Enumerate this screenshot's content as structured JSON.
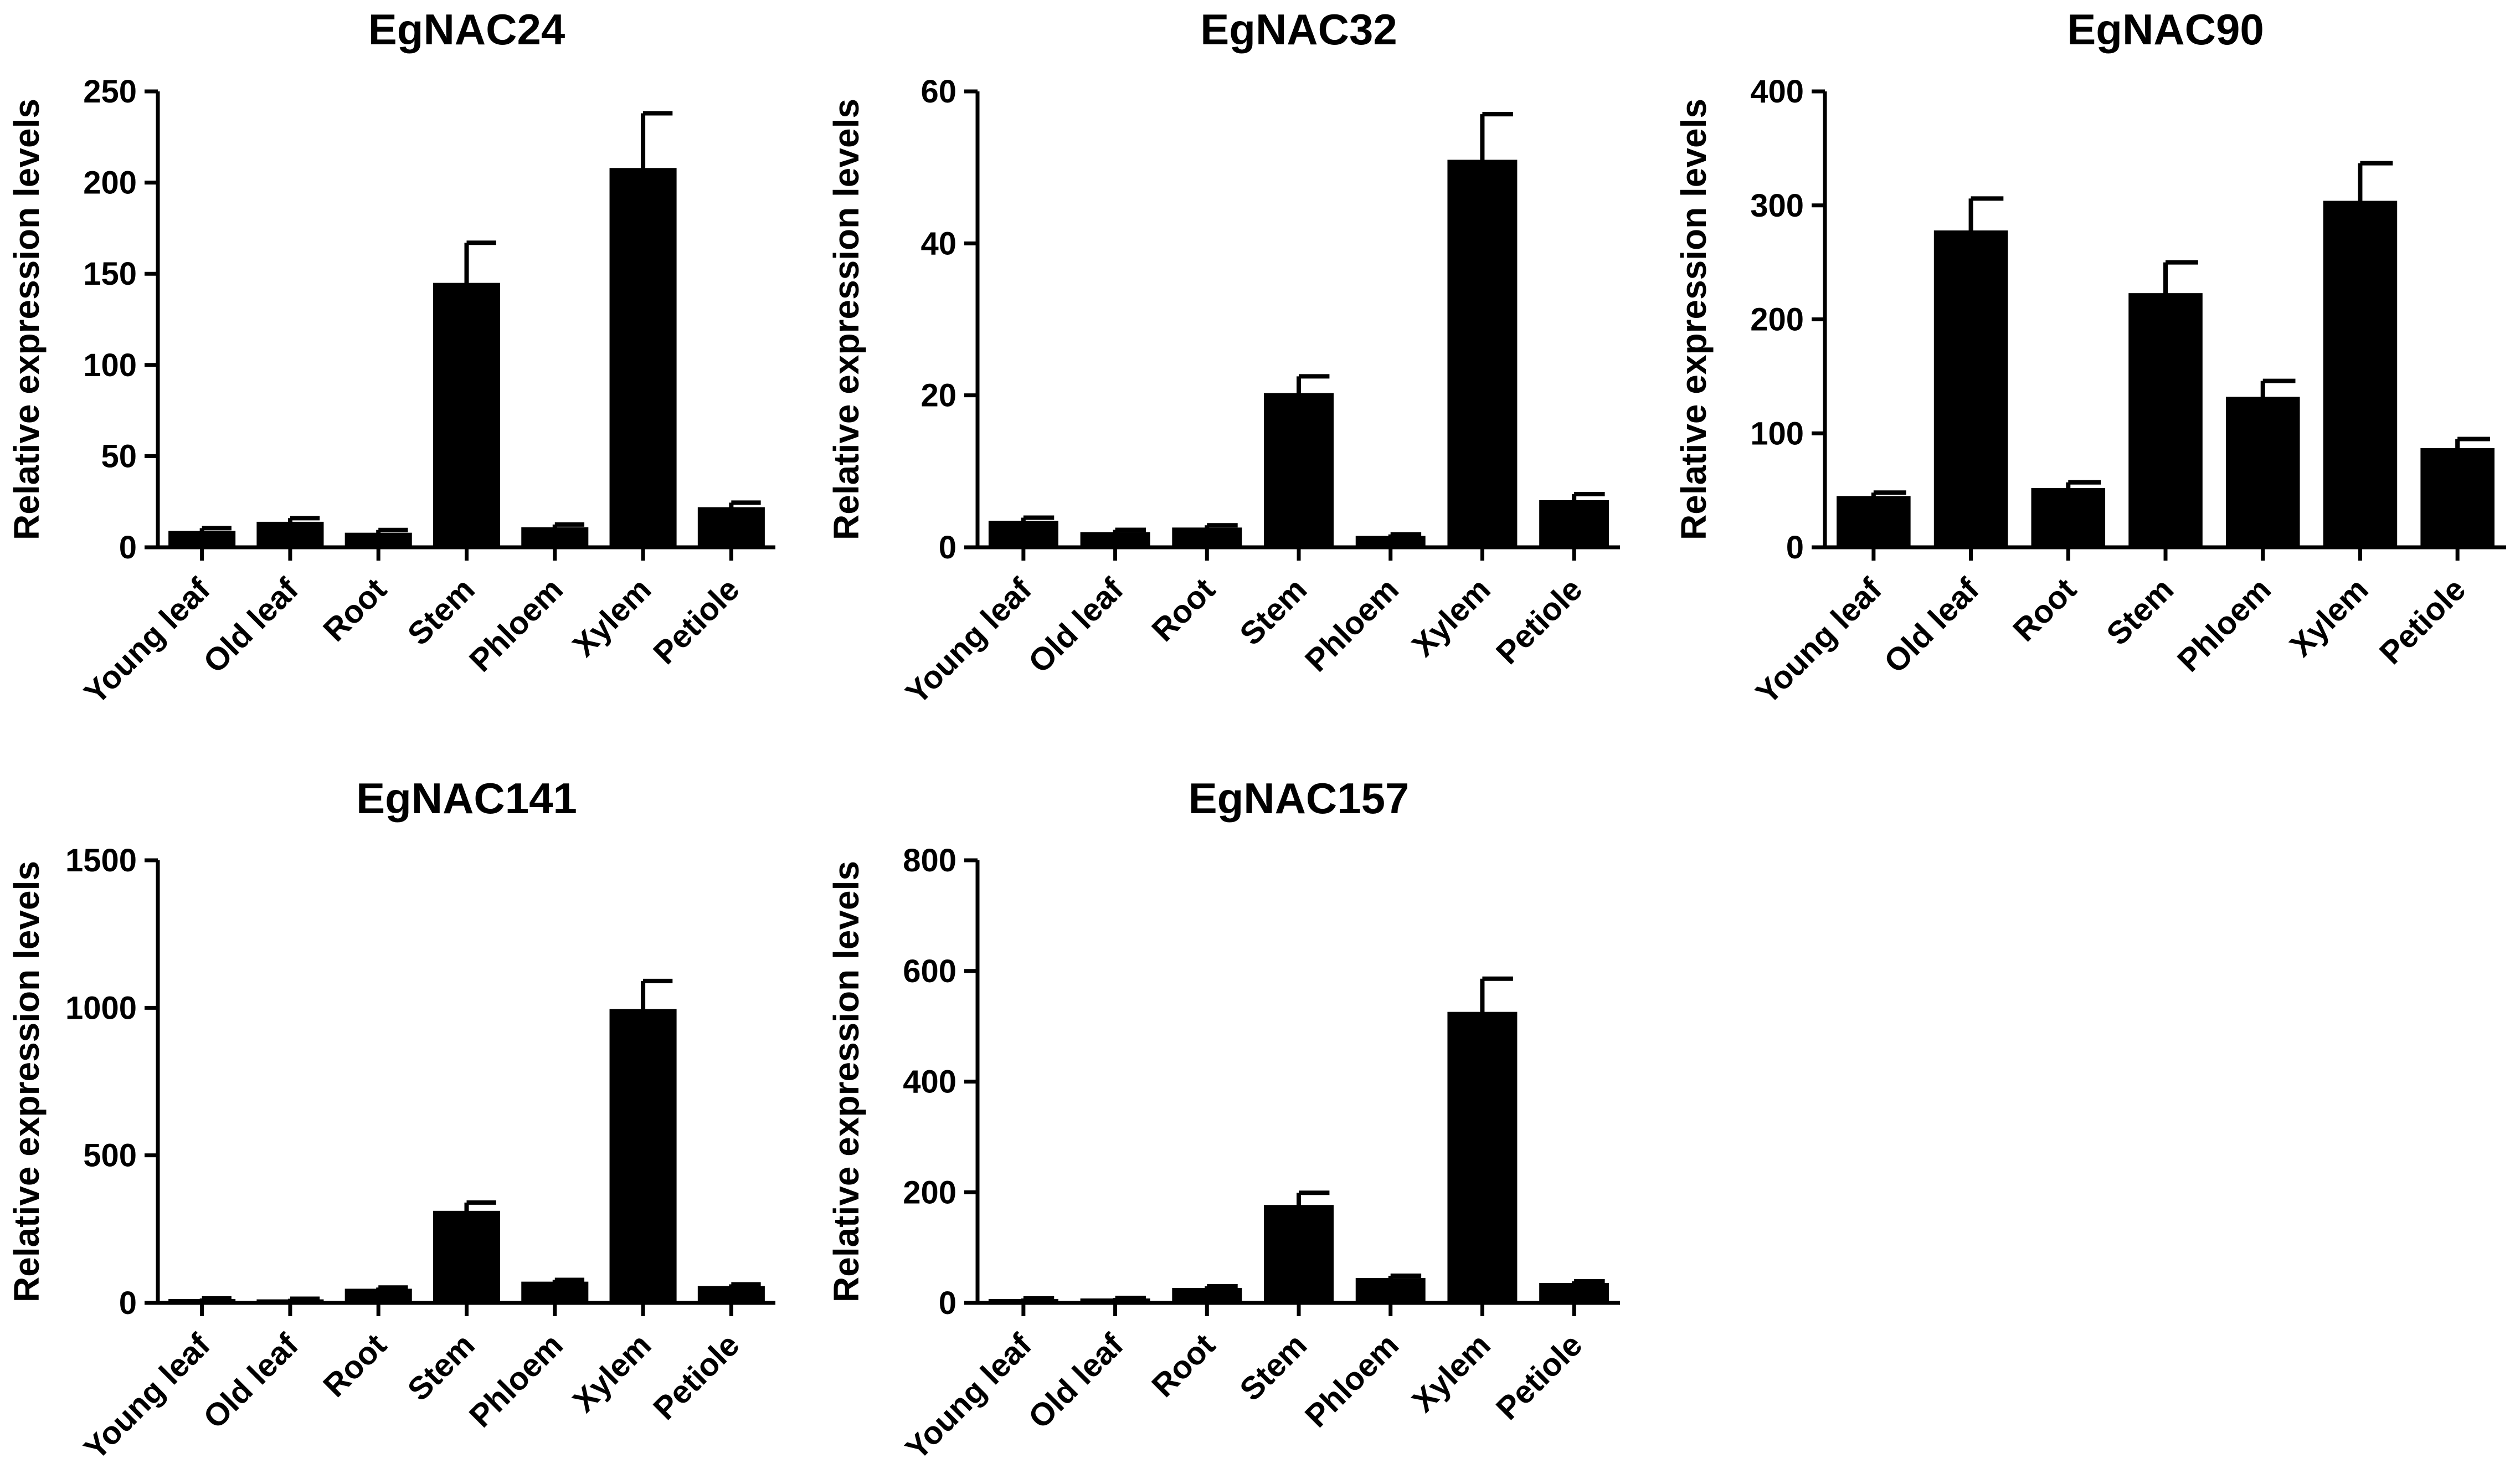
{
  "colors": {
    "bar": "#000000",
    "axis": "#000000",
    "background": "#ffffff"
  },
  "chart_data": [
    {
      "type": "bar",
      "title": "EgNAC24",
      "ylabel": "Relative expression levels",
      "categories": [
        "Young leaf",
        "Old leaf",
        "Root",
        "Stem",
        "Phloem",
        "Xylem",
        "Petiole"
      ],
      "values": [
        9,
        14,
        8,
        145,
        11,
        208,
        22
      ],
      "errors": [
        1.5,
        2,
        1.5,
        22,
        1.5,
        30,
        2.5
      ],
      "ylim": [
        0,
        250
      ],
      "yticks": [
        "0",
        "50",
        "100",
        "150",
        "200",
        "250"
      ]
    },
    {
      "type": "bar",
      "title": "EgNAC32",
      "ylabel": "Relative expression levels",
      "categories": [
        "Young leaf",
        "Old leaf",
        "Root",
        "Stem",
        "Phloem",
        "Xylem",
        "Petiole"
      ],
      "values": [
        3.5,
        2,
        2.6,
        20.3,
        1.5,
        51,
        6.2
      ],
      "errors": [
        0.4,
        0.3,
        0.3,
        2.2,
        0.2,
        6,
        0.8
      ],
      "ylim": [
        0,
        60
      ],
      "yticks": [
        "0",
        "20",
        "40",
        "60"
      ]
    },
    {
      "type": "bar",
      "title": "EgNAC90",
      "ylabel": "Relative expression levels",
      "categories": [
        "Young leaf",
        "Old leaf",
        "Root",
        "Stem",
        "Phloem",
        "Xylem",
        "Petiole"
      ],
      "values": [
        45,
        278,
        52,
        223,
        132,
        304,
        87
      ],
      "errors": [
        3,
        28,
        5,
        27,
        14,
        33,
        8
      ],
      "ylim": [
        0,
        400
      ],
      "yticks": [
        "0",
        "100",
        "200",
        "300",
        "400"
      ]
    },
    {
      "type": "bar",
      "title": "EgNAC141",
      "ylabel": "Relative expression levels",
      "categories": [
        "Young leaf",
        "Old leaf",
        "Root",
        "Stem",
        "Phloem",
        "Xylem",
        "Petiole"
      ],
      "values": [
        13,
        12,
        48,
        312,
        72,
        996,
        57
      ],
      "errors": [
        2,
        2,
        4,
        28,
        6,
        95,
        6
      ],
      "ylim": [
        0,
        1500
      ],
      "yticks": [
        "0",
        "500",
        "1000",
        "1500"
      ]
    },
    {
      "type": "bar",
      "title": "EgNAC157",
      "ylabel": "Relative expression levels",
      "categories": [
        "Young leaf",
        "Old leaf",
        "Root",
        "Stem",
        "Phloem",
        "Xylem",
        "Petiole"
      ],
      "values": [
        7,
        8,
        27,
        177,
        45,
        526,
        36
      ],
      "errors": [
        1,
        1,
        3,
        22,
        4,
        60,
        3
      ],
      "ylim": [
        0,
        800
      ],
      "yticks": [
        "0",
        "200",
        "400",
        "600",
        "800"
      ]
    }
  ]
}
